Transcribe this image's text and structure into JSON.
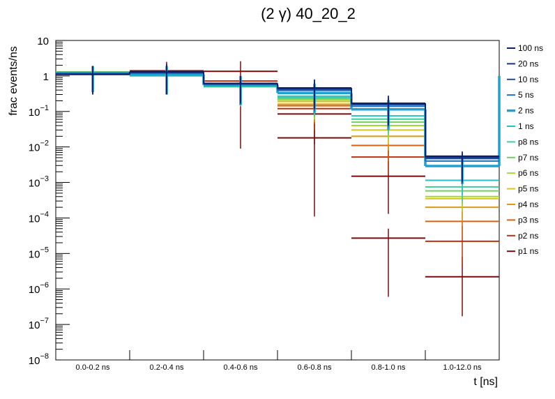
{
  "chart_data": {
    "type": "line",
    "title": "(2 γ) 40_20_2",
    "xlabel": "t [ns]",
    "ylabel": "frac events/ns",
    "y_scale": "log",
    "ylim": [
      1e-08,
      10
    ],
    "y_ticks": [
      {
        "base": "10",
        "exp": "−8"
      },
      {
        "base": "10",
        "exp": "−7"
      },
      {
        "base": "10",
        "exp": "−6"
      },
      {
        "base": "10",
        "exp": "−5"
      },
      {
        "base": "10",
        "exp": "−4"
      },
      {
        "base": "10",
        "exp": "−3"
      },
      {
        "base": "10",
        "exp": "−2"
      },
      {
        "base": "10",
        "exp": "−1"
      },
      {
        "base": "1",
        "exp": ""
      },
      {
        "base": "10",
        "exp": ""
      }
    ],
    "categories": [
      "0.0-0.2 ns",
      "0.2-0.4 ns",
      "0.4-0.6 ns",
      "0.6-0.8 ns",
      "0.8-1.0 ns",
      "1.0-12.0 ns"
    ],
    "grid": false,
    "legend_position": "right",
    "series": [
      {
        "name": "100 ns",
        "color": "#0b1f6b",
        "values": [
          1.1,
          1.3,
          0.62,
          0.46,
          0.17,
          0.0055
        ],
        "err": [
          [
            0.3,
            1.9
          ],
          [
            0.3,
            2.2
          ],
          [
            0.17,
            1.0
          ],
          [
            0.12,
            0.8
          ],
          [
            0.04,
            0.28
          ],
          [
            0.0011,
            0.0075
          ]
        ]
      },
      {
        "name": "20 ns",
        "color": "#14348c",
        "values": [
          1.12,
          1.28,
          0.61,
          0.44,
          0.165,
          0.0051
        ],
        "err": [
          [
            0.3,
            1.9
          ],
          [
            0.3,
            2.1
          ],
          [
            0.17,
            1.0
          ],
          [
            0.12,
            0.78
          ],
          [
            0.04,
            0.27
          ],
          [
            0.001,
            0.007
          ]
        ]
      },
      {
        "name": "10 ns",
        "color": "#1c4f9e",
        "values": [
          1.14,
          1.25,
          0.6,
          0.42,
          0.155,
          0.0047
        ],
        "err": [
          [
            0.3,
            1.9
          ],
          [
            0.3,
            2.1
          ],
          [
            0.16,
            1.0
          ],
          [
            0.11,
            0.75
          ],
          [
            0.04,
            0.26
          ],
          [
            0.001,
            0.007
          ]
        ]
      },
      {
        "name": "5 ns",
        "color": "#1f6fb8",
        "values": [
          1.17,
          1.2,
          0.58,
          0.39,
          0.14,
          0.004
        ],
        "err": [
          [
            0.3,
            1.9
          ],
          [
            0.3,
            2.0
          ],
          [
            0.16,
            1.0
          ],
          [
            0.1,
            0.7
          ],
          [
            0.035,
            0.25
          ],
          [
            0.0009,
            0.0065
          ]
        ]
      },
      {
        "name": "2 ns",
        "color": "#1ea1d0",
        "values": [
          1.22,
          1.1,
          0.55,
          0.33,
          0.115,
          0.0029
        ],
        "err": [
          [
            0.35,
            1.9
          ],
          [
            0.3,
            1.9
          ],
          [
            0.15,
            1.0
          ],
          [
            0.09,
            0.6
          ],
          [
            0.03,
            0.21
          ],
          [
            0.0009,
            0.0045
          ]
        ]
      },
      {
        "name": "1 ns",
        "color": "#27bfc2",
        "values": [
          1.25,
          1.05,
          0.52,
          0.27,
          0.075,
          0.00115
        ],
        "err": [
          [
            0.35,
            1.9
          ],
          [
            0.3,
            1.9
          ],
          [
            0.15,
            0.95
          ],
          [
            0.08,
            0.5
          ],
          [
            0.03,
            0.14
          ],
          [
            0.00045,
            0.002
          ]
        ]
      },
      {
        "name": "p8 ns",
        "color": "#3ccf9a",
        "values": [
          1.27,
          1.03,
          0.51,
          0.245,
          0.061,
          0.00075
        ],
        "err": [
          [
            0.35,
            1.9
          ],
          [
            0.3,
            1.9
          ],
          [
            0.15,
            0.95
          ],
          [
            0.07,
            0.45
          ],
          [
            0.025,
            0.12
          ],
          [
            0.0003,
            0.0013
          ]
        ]
      },
      {
        "name": "p7 ns",
        "color": "#6dd35c",
        "values": [
          1.28,
          1.02,
          0.5,
          0.23,
          0.05,
          0.00058
        ],
        "err": [
          [
            0.35,
            1.9
          ],
          [
            0.3,
            1.9
          ],
          [
            0.15,
            0.95
          ],
          [
            0.07,
            0.42
          ],
          [
            0.02,
            0.1
          ],
          [
            0.00025,
            0.001
          ]
        ]
      },
      {
        "name": "p6 ns",
        "color": "#a8d631",
        "values": [
          1.29,
          1.01,
          0.5,
          0.21,
          0.04,
          0.0004
        ],
        "err": [
          [
            0.35,
            1.9
          ],
          [
            0.3,
            1.9
          ],
          [
            0.15,
            0.95
          ],
          [
            0.06,
            0.4
          ],
          [
            0.015,
            0.08
          ],
          [
            0.00017,
            0.0008
          ]
        ]
      },
      {
        "name": "p5 ns",
        "color": "#d7c321",
        "values": [
          1.3,
          1.0,
          0.5,
          0.19,
          0.03,
          0.00035
        ],
        "err": [
          [
            0.35,
            1.9
          ],
          [
            0.3,
            1.9
          ],
          [
            0.14,
            0.95
          ],
          [
            0.06,
            0.36
          ],
          [
            0.012,
            0.06
          ],
          [
            0.00015,
            0.0007
          ]
        ]
      },
      {
        "name": "p4 ns",
        "color": "#dc9a12",
        "values": [
          1.3,
          1.0,
          0.5,
          0.16,
          0.02,
          0.0002
        ],
        "err": [
          [
            0.35,
            1.9
          ],
          [
            0.3,
            1.9
          ],
          [
            0.14,
            0.95
          ],
          [
            0.05,
            0.32
          ],
          [
            0.008,
            0.045
          ],
          [
            8e-05,
            0.0004
          ]
        ]
      },
      {
        "name": "p3 ns",
        "color": "#d9600c",
        "values": [
          1.3,
          1.01,
          0.52,
          0.145,
          0.011,
          8e-05
        ],
        "err": [
          [
            0.35,
            1.9
          ],
          [
            0.3,
            1.9
          ],
          [
            0.14,
            0.95
          ],
          [
            0.045,
            0.3
          ],
          [
            0.004,
            0.025
          ],
          [
            3e-05,
            0.00018
          ]
        ]
      },
      {
        "name": "p2 ns",
        "color": "#c0300e",
        "values": [
          1.2,
          1.15,
          0.72,
          0.12,
          0.0052,
          2.2e-05
        ],
        "err": [
          [
            0.35,
            1.9
          ],
          [
            0.3,
            2.0
          ],
          [
            0.2,
            1.1
          ],
          [
            0.03,
            0.28
          ],
          [
            0.0018,
            0.012
          ],
          [
            5e-06,
            6e-05
          ]
        ]
      },
      {
        "name": "p1 ns",
        "color": "#7a0a0a",
        "values": [
          1.15,
          1.4,
          1.35,
          0.085,
          0.0015,
          2.2e-06
        ],
        "err": [
          [
            0.3,
            1.9
          ],
          [
            0.3,
            2.5
          ],
          [
            0.009,
            2.6
          ],
          [
            0.012,
            0.5
          ],
          [
            0.00013,
            0.008
          ],
          [
            1.7e-07,
            8e-06
          ]
        ]
      },
      {
        "name": "",
        "color": "#7a0a0a",
        "values": [
          null,
          null,
          null,
          0.018,
          2.7e-05,
          null
        ],
        "err": [
          null,
          null,
          null,
          [
            0.00011,
            0.09
          ],
          [
            6e-07,
            5e-05
          ],
          null
        ]
      }
    ]
  }
}
